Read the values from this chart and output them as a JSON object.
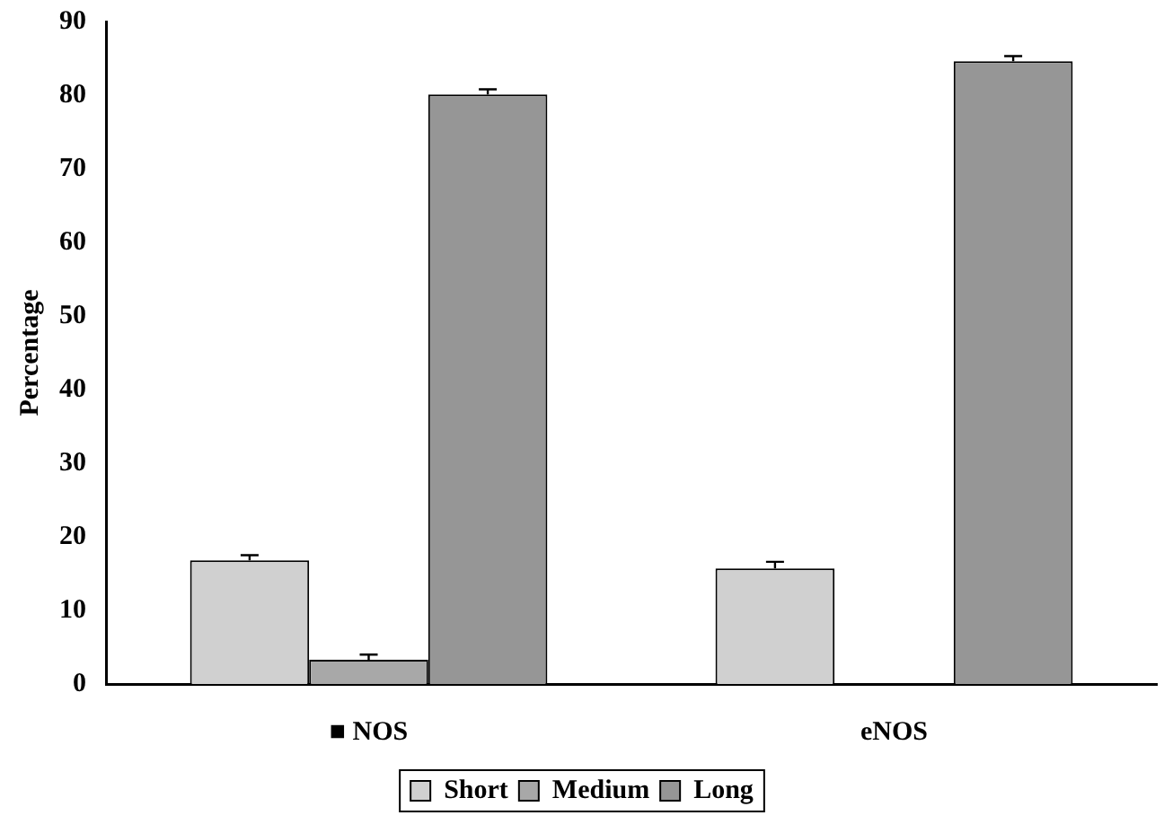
{
  "chart_data": {
    "type": "bar",
    "ylabel": "Percentage",
    "categories": [
      "■ NOS",
      "eNOS"
    ],
    "series": [
      {
        "name": "Short",
        "color": "#d0d0d0",
        "values": [
          16.8,
          15.7
        ],
        "errors": [
          0.7,
          0.9
        ]
      },
      {
        "name": "Medium",
        "color": "#a8a8a8",
        "values": [
          3.3,
          null
        ],
        "errors": [
          0.7,
          null
        ]
      },
      {
        "name": "Long",
        "color": "#969696",
        "values": [
          80.1,
          84.6
        ],
        "errors": [
          0.7,
          0.7
        ]
      }
    ],
    "ylim": [
      0,
      90
    ],
    "yticks": [
      0,
      10,
      20,
      30,
      40,
      50,
      60,
      70,
      80,
      90
    ],
    "grid": false,
    "legend": "bottom"
  }
}
